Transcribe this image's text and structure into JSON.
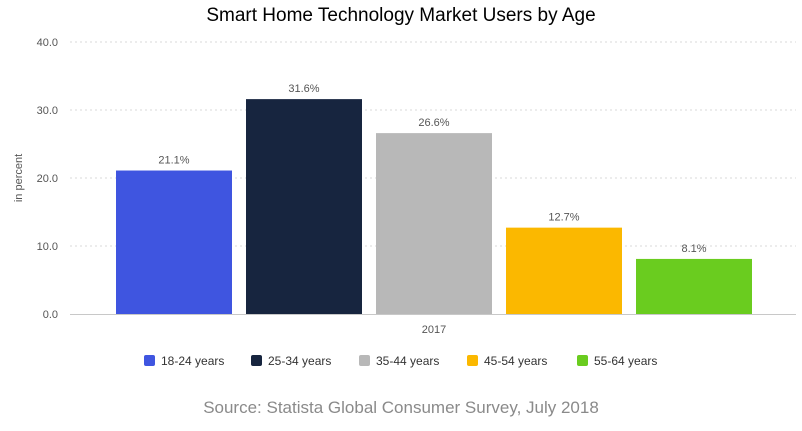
{
  "chart_data": {
    "type": "bar",
    "title": "Smart Home Technology Market Users by Age",
    "ylabel": "in percent",
    "xlabel": "",
    "categories": [
      "2017"
    ],
    "ylim": [
      0,
      40
    ],
    "yticks": [
      "0.0",
      "10.0",
      "20.0",
      "30.0",
      "40.0"
    ],
    "grid": true,
    "legend_position": "bottom",
    "series": [
      {
        "name": "18-24 years",
        "values": [
          21.1
        ],
        "label": "21.1%",
        "color": "#3f55e0"
      },
      {
        "name": "25-34 years",
        "values": [
          31.6
        ],
        "label": "31.6%",
        "color": "#17253f"
      },
      {
        "name": "35-44 years",
        "values": [
          26.6
        ],
        "label": "26.6%",
        "color": "#b8b8b8"
      },
      {
        "name": "45-54 years",
        "values": [
          12.7
        ],
        "label": "12.7%",
        "color": "#fbb800"
      },
      {
        "name": "55-64 years",
        "values": [
          8.1
        ],
        "label": "8.1%",
        "color": "#6acc1f"
      }
    ]
  },
  "source": "Source: Statista Global Consumer Survey, July 2018"
}
